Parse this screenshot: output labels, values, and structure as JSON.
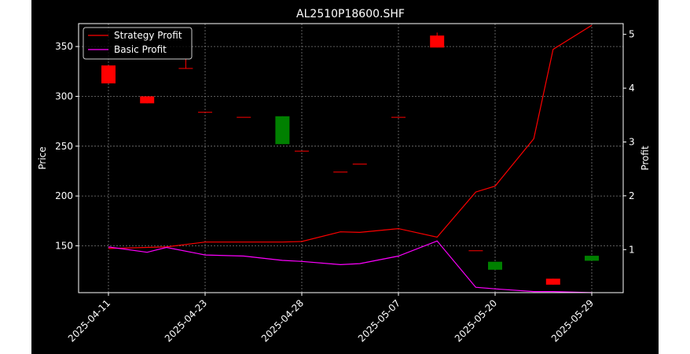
{
  "chart_data": {
    "type": "candlestick+line",
    "title": "AL2510P18600.SHF",
    "ylabel_left": "Price",
    "ylabel_right": "Profit",
    "xlabel": "",
    "grid": true,
    "legend_placement": "top-left",
    "ylim_left": [
      103,
      373
    ],
    "ylim_right": [
      0.2,
      5.2
    ],
    "yticks_left": [
      150,
      200,
      250,
      300,
      350
    ],
    "yticks_right": [
      1,
      2,
      3,
      4,
      5
    ],
    "x_tick_labels": [
      "2025-04-11",
      "2025-04-23",
      "2025-04-28",
      "2025-05-07",
      "2025-05-20",
      "2025-05-29"
    ],
    "x_tick_indices": [
      0,
      5,
      10,
      15,
      20,
      25
    ],
    "candles": [
      {
        "i": 0,
        "open": 313,
        "close": 331,
        "high": 331,
        "low": 313,
        "color": "red"
      },
      {
        "i": 2,
        "open": 293,
        "close": 300,
        "high": 300,
        "low": 293,
        "color": "red"
      },
      {
        "i": 4,
        "open": 328,
        "close": 328,
        "high": 338,
        "low": 328,
        "color": "red"
      },
      {
        "i": 5,
        "open": 284,
        "close": 284,
        "high": 284,
        "low": 284,
        "color": "red"
      },
      {
        "i": 7,
        "open": 279,
        "close": 279,
        "high": 279,
        "low": 279,
        "color": "red"
      },
      {
        "i": 9,
        "open": 280,
        "close": 252,
        "high": 280,
        "low": 252,
        "color": "green"
      },
      {
        "i": 10,
        "open": 245,
        "close": 245,
        "high": 245,
        "low": 245,
        "color": "red"
      },
      {
        "i": 12,
        "open": 224,
        "close": 224,
        "high": 224,
        "low": 224,
        "color": "red"
      },
      {
        "i": 13,
        "open": 232,
        "close": 232,
        "high": 232,
        "low": 232,
        "color": "red"
      },
      {
        "i": 15,
        "open": 279,
        "close": 279,
        "high": 279,
        "low": 279,
        "color": "red"
      },
      {
        "i": 17,
        "open": 349,
        "close": 361,
        "high": 364,
        "low": 349,
        "color": "red"
      },
      {
        "i": 19,
        "open": 145,
        "close": 145,
        "high": 145,
        "low": 145,
        "color": "red"
      },
      {
        "i": 20,
        "open": 134,
        "close": 126,
        "high": 134,
        "low": 126,
        "color": "green"
      },
      {
        "i": 23,
        "open": 111,
        "close": 117,
        "high": 117,
        "low": 111,
        "color": "red"
      },
      {
        "i": 25,
        "open": 140,
        "close": 135,
        "high": 140,
        "low": 135,
        "color": "green"
      }
    ],
    "series": [
      {
        "name": "Strategy Profit",
        "color": "#ff0000",
        "axis": "right",
        "x": [
          0,
          2,
          3,
          5,
          7,
          9,
          10,
          12,
          13,
          15,
          17,
          19,
          20,
          22,
          23,
          25
        ],
        "values": [
          1.02,
          1.04,
          1.05,
          1.14,
          1.14,
          1.14,
          1.15,
          1.33,
          1.32,
          1.39,
          1.23,
          2.07,
          2.18,
          3.06,
          4.72,
          5.17
        ]
      },
      {
        "name": "Basic Profit",
        "color": "#ff00ff",
        "axis": "right",
        "x": [
          0,
          2,
          3,
          5,
          7,
          9,
          10,
          12,
          13,
          15,
          17,
          19,
          20,
          22,
          23,
          25
        ],
        "values": [
          1.05,
          0.95,
          1.04,
          0.9,
          0.88,
          0.8,
          0.78,
          0.72,
          0.74,
          0.88,
          1.16,
          0.3,
          0.27,
          0.22,
          0.22,
          0.2
        ]
      }
    ]
  }
}
